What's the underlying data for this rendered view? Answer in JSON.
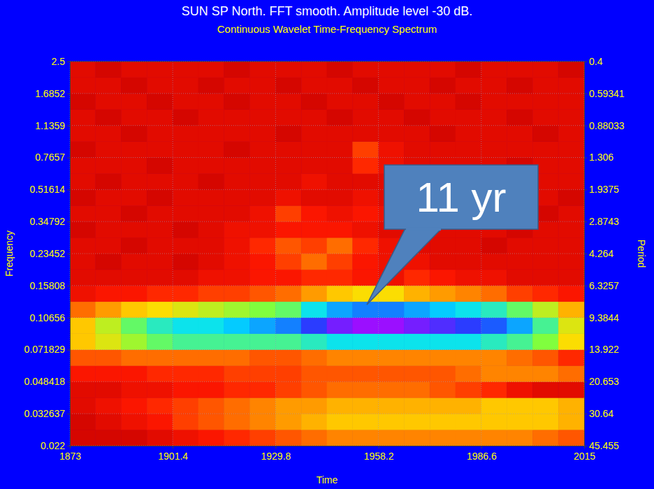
{
  "chart_data": {
    "type": "heatmap",
    "title": "SUN SP North. FFT smooth. Amplitude level -30 dB.",
    "subtitle": "Continuous Wavelet Time-Frequency Spectrum",
    "x_label": "Time",
    "y_label": "Frequency",
    "y2_label": "Period",
    "log": "y",
    "grid": true,
    "xlim": [
      1873,
      2015
    ],
    "xticks": [
      1873,
      1901.4,
      1929.8,
      1958.2,
      1986.6,
      2015
    ],
    "ylim": [
      0.022,
      2.5
    ],
    "yticks": [
      0.022,
      0.032637,
      0.048418,
      0.071829,
      0.10656,
      0.15808,
      0.23452,
      0.34792,
      0.51614,
      0.7657,
      1.1359,
      1.6852,
      2.5
    ],
    "y2lim": [
      45.455,
      0.4
    ],
    "y2ticks": [
      45.455,
      30.64,
      20.653,
      13.922,
      9.3844,
      6.3257,
      4.264,
      2.8743,
      1.9375,
      1.306,
      0.88033,
      0.59341,
      0.4
    ],
    "x_edges": [
      1873,
      1880.1,
      1887.2,
      1894.3,
      1901.4,
      1908.5,
      1915.6,
      1922.7,
      1929.8,
      1936.9,
      1944,
      1951.1,
      1958.2,
      1965.3,
      1972.4,
      1979.5,
      1986.6,
      1993.7,
      2000.8,
      2007.9,
      2015
    ],
    "y_edges": [
      0.022,
      0.026796,
      0.032637,
      0.039753,
      0.048418,
      0.058975,
      0.071829,
      0.087491,
      0.10656,
      0.12979,
      0.15808,
      0.19255,
      0.23452,
      0.28565,
      0.34792,
      0.42377,
      0.51614,
      0.62867,
      0.7657,
      0.93265,
      1.1359,
      1.3836,
      1.6852,
      2.0526,
      2.5
    ],
    "zlim": [
      -30,
      0
    ],
    "z": [
      [
        -29,
        -29,
        -29,
        -28,
        -27,
        -26,
        -25,
        -24,
        -23,
        -22,
        -21,
        -21,
        -21,
        -21,
        -21,
        -21,
        -21,
        -21,
        -22,
        -23
      ],
      [
        -29,
        -28,
        -27,
        -26,
        -24,
        -23,
        -22,
        -21,
        -20,
        -19,
        -18,
        -18,
        -18,
        -18,
        -18,
        -18,
        -18,
        -18,
        -18,
        -19
      ],
      [
        -28,
        -27,
        -26,
        -25,
        -24,
        -23,
        -22,
        -21,
        -20,
        -20,
        -19,
        -19,
        -19,
        -19,
        -19,
        -19,
        -18,
        -18,
        -18,
        -19
      ],
      [
        -28,
        -28,
        -27,
        -27,
        -26,
        -26,
        -25,
        -25,
        -24,
        -23,
        -22,
        -22,
        -22,
        -22,
        -23,
        -24,
        -25,
        -27,
        -28,
        -28
      ],
      [
        -26,
        -26,
        -26,
        -25,
        -25,
        -25,
        -24,
        -24,
        -24,
        -23,
        -23,
        -23,
        -23,
        -23,
        -23,
        -22,
        -21,
        -21,
        -21,
        -22
      ],
      [
        -23,
        -23,
        -22,
        -22,
        -22,
        -22,
        -22,
        -23,
        -23,
        -22,
        -21,
        -21,
        -21,
        -21,
        -21,
        -21,
        -21,
        -22,
        -23,
        -25
      ],
      [
        -18,
        -16,
        -14,
        -12,
        -11,
        -11,
        -11,
        -11,
        -11,
        -10,
        -9,
        -9,
        -9,
        -9,
        -9,
        -9,
        -10,
        -11,
        -13,
        -17
      ],
      [
        -18,
        -15,
        -12,
        -10,
        -9,
        -9,
        -8,
        -7,
        -6,
        -4,
        -2,
        -1,
        -1,
        -2,
        -3,
        -4,
        -5,
        -7,
        -11,
        -16
      ],
      [
        -22,
        -20,
        -18,
        -17,
        -16,
        -15,
        -14,
        -13,
        -12,
        -9,
        -7,
        -6,
        -6,
        -7,
        -8,
        -9,
        -10,
        -12,
        -15,
        -19
      ],
      [
        -27,
        -26,
        -26,
        -25,
        -25,
        -24,
        -24,
        -23,
        -22,
        -20,
        -18,
        -17,
        -17,
        -19,
        -20,
        -21,
        -22,
        -24,
        -25,
        -26
      ],
      [
        -28,
        -28,
        -28,
        -28,
        -28,
        -27,
        -27,
        -26,
        -26,
        -25,
        -25,
        -26,
        -27,
        -25,
        -26,
        -27,
        -27,
        -28,
        -28,
        -28
      ],
      [
        -28,
        -29,
        -28,
        -28,
        -29,
        -28,
        -27,
        -26,
        -24,
        -22,
        -24,
        -26,
        -27,
        -27,
        -28,
        -28,
        -28,
        -28,
        -28,
        -28
      ],
      [
        -28,
        -28,
        -29,
        -28,
        -28,
        -28,
        -27,
        -25,
        -23,
        -24,
        -22,
        -25,
        -27,
        -28,
        -28,
        -28,
        -29,
        -28,
        -28,
        -28
      ],
      [
        -29,
        -28,
        -28,
        -28,
        -29,
        -28,
        -27,
        -27,
        -26,
        -26,
        -26,
        -27,
        -28,
        -27,
        -28,
        -28,
        -28,
        -29,
        -28,
        -28
      ],
      [
        -28,
        -28,
        -29,
        -28,
        -28,
        -28,
        -28,
        -27,
        -24,
        -26,
        -27,
        -26,
        -27,
        -28,
        -28,
        -28,
        -28,
        -28,
        -29,
        -28
      ],
      [
        -29,
        -28,
        -28,
        -29,
        -28,
        -28,
        -28,
        -28,
        -27,
        -28,
        -28,
        -27,
        -28,
        -28,
        -28,
        -29,
        -28,
        -28,
        -28,
        -29
      ],
      [
        -28,
        -29,
        -28,
        -28,
        -28,
        -29,
        -28,
        -28,
        -28,
        -27,
        -28,
        -28,
        -28,
        -28,
        -29,
        -28,
        -28,
        -28,
        -28,
        -28
      ],
      [
        -28,
        -28,
        -28,
        -29,
        -28,
        -28,
        -28,
        -28,
        -28,
        -28,
        -28,
        -25,
        -27,
        -28,
        -28,
        -28,
        -28,
        -29,
        -28,
        -28
      ],
      [
        -29,
        -28,
        -28,
        -28,
        -28,
        -28,
        -29,
        -28,
        -28,
        -28,
        -28,
        -24,
        -27,
        -28,
        -28,
        -28,
        -28,
        -28,
        -28,
        -28
      ],
      [
        -28,
        -28,
        -29,
        -28,
        -28,
        -28,
        -28,
        -28,
        -29,
        -28,
        -28,
        -28,
        -28,
        -28,
        -29,
        -28,
        -28,
        -28,
        -29,
        -28
      ],
      [
        -28,
        -29,
        -28,
        -28,
        -29,
        -28,
        -28,
        -28,
        -28,
        -28,
        -29,
        -28,
        -28,
        -29,
        -28,
        -28,
        -28,
        -29,
        -28,
        -28
      ],
      [
        -29,
        -28,
        -28,
        -29,
        -28,
        -28,
        -29,
        -28,
        -28,
        -29,
        -28,
        -28,
        -29,
        -28,
        -28,
        -29,
        -28,
        -28,
        -28,
        -28
      ],
      [
        -28,
        -28,
        -29,
        -28,
        -28,
        -29,
        -28,
        -28,
        -29,
        -28,
        -28,
        -29,
        -28,
        -28,
        -29,
        -28,
        -28,
        -29,
        -28,
        -28
      ],
      [
        -28,
        -29,
        -28,
        -28,
        -28,
        -28,
        -29,
        -28,
        -28,
        -28,
        -29,
        -28,
        -28,
        -28,
        -28,
        -29,
        -28,
        -28,
        -28,
        -29
      ]
    ],
    "annotations": [
      {
        "text": "11 yr",
        "x": 1955,
        "y": 0.125
      }
    ]
  }
}
